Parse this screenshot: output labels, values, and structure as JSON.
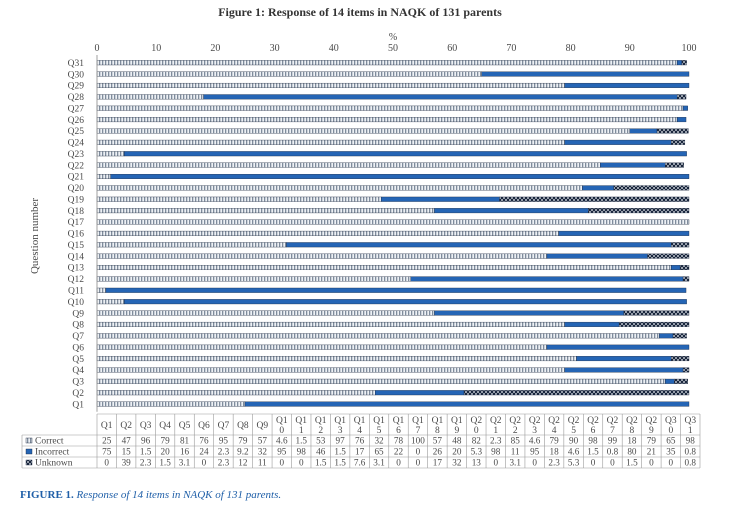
{
  "chart_data": {
    "type": "bar",
    "orientation": "horizontal",
    "stacked": true,
    "title": "Figure 1: Response of 14 items in NAQK of 131 parents",
    "xlabel": "%",
    "ylabel": "Question number",
    "xlim": [
      0,
      100
    ],
    "xticks": [
      0,
      10,
      20,
      30,
      40,
      50,
      60,
      70,
      80,
      90,
      100
    ],
    "grid": false,
    "categories": [
      "Q1",
      "Q2",
      "Q3",
      "Q4",
      "Q5",
      "Q6",
      "Q7",
      "Q8",
      "Q9",
      "Q10",
      "Q11",
      "Q12",
      "Q13",
      "Q14",
      "Q15",
      "Q16",
      "Q17",
      "Q18",
      "Q19",
      "Q20",
      "Q21",
      "Q22",
      "Q23",
      "Q24",
      "Q25",
      "Q26",
      "Q27",
      "Q28",
      "Q29",
      "Q30",
      "Q31"
    ],
    "table_headers": [
      "Q1",
      "Q2",
      "Q3",
      "Q4",
      "Q5",
      "Q6",
      "Q7",
      "Q8",
      "Q9",
      "Q1 0",
      "Q1 1",
      "Q1 2",
      "Q1 3",
      "Q1 4",
      "Q1 5",
      "Q1 6",
      "Q1 7",
      "Q1 8",
      "Q1 9",
      "Q2 0",
      "Q2 1",
      "Q2 2",
      "Q2 3",
      "Q2 4",
      "Q2 5",
      "Q2 6",
      "Q2 7",
      "Q2 8",
      "Q2 9",
      "Q3 0",
      "Q3 1"
    ],
    "series": [
      {
        "name": "Correct",
        "color": "#9aa7b6",
        "pattern": "dashed-vertical",
        "values": [
          25,
          47,
          96,
          79,
          81,
          76,
          95,
          79,
          57,
          4.6,
          1.5,
          53,
          97,
          76,
          32,
          78,
          100,
          57,
          48,
          82,
          2.3,
          85,
          4.6,
          79,
          90,
          98,
          99,
          18,
          79,
          65,
          98
        ],
        "labels": [
          "25",
          "47",
          "96",
          "79",
          "81",
          "76",
          "95",
          "79",
          "57",
          "4.6",
          "1.5",
          "53",
          "97",
          "76",
          "32",
          "78",
          "100",
          "57",
          "48",
          "82",
          "2.3",
          "85",
          "4.6",
          "79",
          "90",
          "98",
          "99",
          "18",
          "79",
          "65",
          "98"
        ]
      },
      {
        "name": "Incorrect",
        "color": "#2565b5",
        "pattern": "solid",
        "values": [
          75,
          15,
          1.5,
          20,
          16,
          24,
          2.3,
          9.2,
          32,
          95,
          98,
          46,
          1.5,
          17,
          65,
          22,
          0,
          26,
          20,
          5.3,
          98,
          11,
          95,
          18,
          4.6,
          1.5,
          0.8,
          80,
          21,
          35,
          0.8
        ],
        "labels": [
          "75",
          "15",
          "1.5",
          "20",
          "16",
          "24",
          "2.3",
          "9.2",
          "32",
          "95",
          "98",
          "46",
          "1.5",
          "17",
          "65",
          "22",
          "0",
          "26",
          "20",
          "5.3",
          "98",
          "11",
          "95",
          "18",
          "4.6",
          "1.5",
          "0.8",
          "80",
          "21",
          "35",
          "0.8"
        ]
      },
      {
        "name": "Unknown",
        "color": "#16233a",
        "pattern": "crosshatch",
        "values": [
          0,
          39,
          2.3,
          1.5,
          3.1,
          0,
          2.3,
          12,
          11,
          0,
          0,
          1.5,
          1.5,
          7.6,
          3.1,
          0,
          0,
          17,
          32,
          13,
          0,
          3.1,
          0,
          2.3,
          5.3,
          0,
          0,
          1.5,
          0,
          0,
          0.8
        ],
        "labels": [
          "0",
          "39",
          "2.3",
          "1.5",
          "3.1",
          "0",
          "2.3",
          "12",
          "11",
          "0",
          "0",
          "1.5",
          "1.5",
          "7.6",
          "3.1",
          "0",
          "0",
          "17",
          "32",
          "13",
          "0",
          "3.1",
          "0",
          "2.3",
          "5.3",
          "0",
          "0",
          "1.5",
          "0",
          "0",
          "0.8"
        ]
      }
    ]
  },
  "caption": {
    "label": "FIGURE 1.",
    "text": "Response of 14 items in NAQK of 131 parents."
  }
}
